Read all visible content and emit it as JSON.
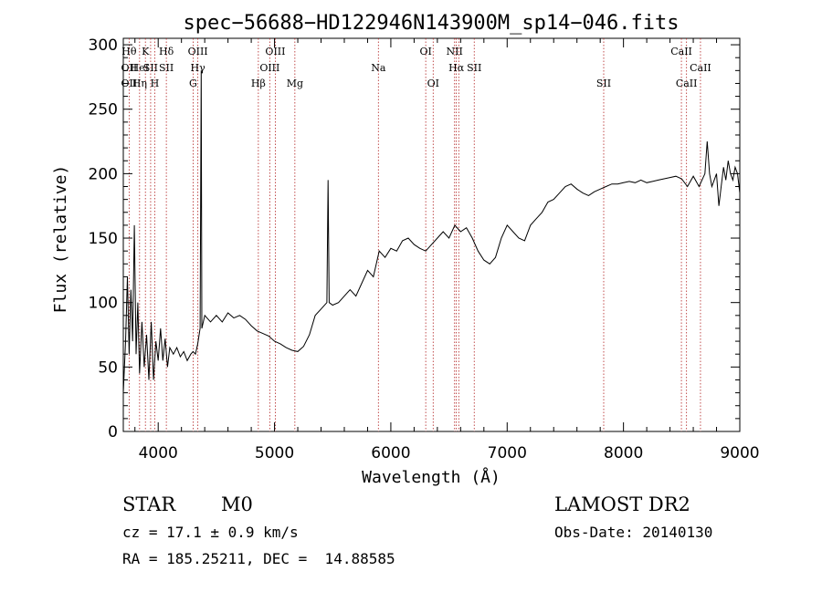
{
  "chart_data": {
    "type": "line",
    "title": "spec−56688−HD122946N143900M_sp14−046.fits",
    "xlabel": "Wavelength (Å)",
    "ylabel": "Flux (relative)",
    "xlim": [
      3700,
      9000
    ],
    "ylim": [
      0,
      305
    ],
    "xticks": [
      4000,
      5000,
      6000,
      7000,
      8000,
      9000
    ],
    "yticks": [
      0,
      50,
      100,
      150,
      200,
      250,
      300
    ],
    "series": [
      {
        "points": [
          [
            3700,
            30
          ],
          [
            3720,
            70
          ],
          [
            3735,
            120
          ],
          [
            3750,
            60
          ],
          [
            3765,
            110
          ],
          [
            3780,
            70
          ],
          [
            3795,
            160
          ],
          [
            3810,
            60
          ],
          [
            3825,
            100
          ],
          [
            3840,
            45
          ],
          [
            3860,
            85
          ],
          [
            3880,
            50
          ],
          [
            3900,
            75
          ],
          [
            3920,
            40
          ],
          [
            3940,
            85
          ],
          [
            3960,
            40
          ],
          [
            3980,
            70
          ],
          [
            4000,
            55
          ],
          [
            4020,
            80
          ],
          [
            4040,
            55
          ],
          [
            4060,
            72
          ],
          [
            4080,
            50
          ],
          [
            4100,
            65
          ],
          [
            4130,
            60
          ],
          [
            4160,
            65
          ],
          [
            4190,
            58
          ],
          [
            4220,
            62
          ],
          [
            4250,
            55
          ],
          [
            4280,
            60
          ],
          [
            4300,
            62
          ],
          [
            4320,
            60
          ],
          [
            4340,
            68
          ],
          [
            4360,
            80
          ],
          [
            4370,
            280
          ],
          [
            4375,
            80
          ],
          [
            4400,
            90
          ],
          [
            4450,
            85
          ],
          [
            4500,
            90
          ],
          [
            4550,
            85
          ],
          [
            4600,
            92
          ],
          [
            4650,
            88
          ],
          [
            4700,
            90
          ],
          [
            4750,
            87
          ],
          [
            4800,
            82
          ],
          [
            4850,
            78
          ],
          [
            4900,
            76
          ],
          [
            4950,
            74
          ],
          [
            5000,
            70
          ],
          [
            5050,
            68
          ],
          [
            5100,
            65
          ],
          [
            5150,
            63
          ],
          [
            5200,
            62
          ],
          [
            5250,
            66
          ],
          [
            5300,
            75
          ],
          [
            5350,
            90
          ],
          [
            5400,
            95
          ],
          [
            5450,
            100
          ],
          [
            5460,
            195
          ],
          [
            5470,
            100
          ],
          [
            5500,
            98
          ],
          [
            5550,
            100
          ],
          [
            5600,
            105
          ],
          [
            5650,
            110
          ],
          [
            5700,
            105
          ],
          [
            5750,
            115
          ],
          [
            5800,
            125
          ],
          [
            5850,
            120
          ],
          [
            5900,
            140
          ],
          [
            5950,
            135
          ],
          [
            6000,
            142
          ],
          [
            6050,
            140
          ],
          [
            6100,
            148
          ],
          [
            6150,
            150
          ],
          [
            6200,
            145
          ],
          [
            6250,
            142
          ],
          [
            6300,
            140
          ],
          [
            6350,
            145
          ],
          [
            6400,
            150
          ],
          [
            6450,
            155
          ],
          [
            6500,
            150
          ],
          [
            6550,
            160
          ],
          [
            6600,
            155
          ],
          [
            6650,
            158
          ],
          [
            6700,
            150
          ],
          [
            6750,
            140
          ],
          [
            6800,
            133
          ],
          [
            6850,
            130
          ],
          [
            6900,
            135
          ],
          [
            6950,
            150
          ],
          [
            7000,
            160
          ],
          [
            7050,
            155
          ],
          [
            7100,
            150
          ],
          [
            7150,
            148
          ],
          [
            7200,
            160
          ],
          [
            7250,
            165
          ],
          [
            7300,
            170
          ],
          [
            7350,
            178
          ],
          [
            7400,
            180
          ],
          [
            7450,
            185
          ],
          [
            7500,
            190
          ],
          [
            7550,
            192
          ],
          [
            7600,
            188
          ],
          [
            7650,
            185
          ],
          [
            7700,
            183
          ],
          [
            7750,
            186
          ],
          [
            7800,
            188
          ],
          [
            7850,
            190
          ],
          [
            7900,
            192
          ],
          [
            7950,
            192
          ],
          [
            8000,
            193
          ],
          [
            8050,
            194
          ],
          [
            8100,
            193
          ],
          [
            8150,
            195
          ],
          [
            8200,
            193
          ],
          [
            8250,
            194
          ],
          [
            8300,
            195
          ],
          [
            8350,
            196
          ],
          [
            8400,
            197
          ],
          [
            8450,
            198
          ],
          [
            8500,
            196
          ],
          [
            8550,
            190
          ],
          [
            8600,
            198
          ],
          [
            8650,
            190
          ],
          [
            8700,
            200
          ],
          [
            8720,
            225
          ],
          [
            8740,
            200
          ],
          [
            8760,
            190
          ],
          [
            8780,
            195
          ],
          [
            8800,
            200
          ],
          [
            8820,
            175
          ],
          [
            8840,
            190
          ],
          [
            8860,
            205
          ],
          [
            8880,
            195
          ],
          [
            8900,
            210
          ],
          [
            8920,
            200
          ],
          [
            8940,
            195
          ],
          [
            8960,
            205
          ],
          [
            8980,
            200
          ],
          [
            9000,
            185
          ]
        ]
      }
    ],
    "lines": [
      {
        "wave": 3750,
        "labels": [
          {
            "row": 1,
            "text": "Hθ"
          },
          {
            "row": 2,
            "text": "OII"
          },
          {
            "row": 3,
            "text": "OII"
          }
        ]
      },
      {
        "wave": 3840,
        "labels": [
          {
            "row": 2,
            "text": "HeI"
          },
          {
            "row": 3,
            "text": "Hη"
          }
        ]
      },
      {
        "wave": 3890,
        "labels": [
          {
            "row": 1,
            "text": "K"
          }
        ]
      },
      {
        "wave": 3935,
        "labels": [
          {
            "row": 2,
            "text": "SII"
          }
        ]
      },
      {
        "wave": 3970,
        "labels": [
          {
            "row": 3,
            "text": "H"
          }
        ]
      },
      {
        "wave": 4070,
        "labels": [
          {
            "row": 1,
            "text": "Hδ"
          },
          {
            "row": 2,
            "text": "SII"
          }
        ]
      },
      {
        "wave": 4300,
        "labels": [
          {
            "row": 3,
            "text": "G"
          }
        ]
      },
      {
        "wave": 4341,
        "labels": [
          {
            "row": 1,
            "text": "OIII"
          },
          {
            "row": 2,
            "text": "Hγ"
          }
        ]
      },
      {
        "wave": 4861,
        "labels": [
          {
            "row": 3,
            "text": "Hβ"
          }
        ]
      },
      {
        "wave": 4959,
        "labels": [
          {
            "row": 2,
            "text": "OIII"
          }
        ]
      },
      {
        "wave": 5007,
        "labels": [
          {
            "row": 1,
            "text": "OIII"
          }
        ]
      },
      {
        "wave": 5175,
        "labels": [
          {
            "row": 3,
            "text": "Mg"
          }
        ]
      },
      {
        "wave": 5893,
        "labels": [
          {
            "row": 2,
            "text": "Na"
          }
        ]
      },
      {
        "wave": 6300,
        "labels": [
          {
            "row": 1,
            "text": "OI"
          }
        ]
      },
      {
        "wave": 6364,
        "labels": [
          {
            "row": 3,
            "text": "OI"
          }
        ]
      },
      {
        "wave": 6548,
        "labels": [
          {
            "row": 1,
            "text": "NII"
          }
        ]
      },
      {
        "wave": 6563,
        "labels": [
          {
            "row": 2,
            "text": "Hα"
          }
        ]
      },
      {
        "wave": 6584,
        "labels": []
      },
      {
        "wave": 6717,
        "labels": [
          {
            "row": 2,
            "text": "SII"
          }
        ]
      },
      {
        "wave": 7830,
        "labels": [
          {
            "row": 3,
            "text": "SII"
          }
        ]
      },
      {
        "wave": 8498,
        "labels": [
          {
            "row": 1,
            "text": "CaII"
          }
        ]
      },
      {
        "wave": 8542,
        "labels": [
          {
            "row": 3,
            "text": "CaII"
          }
        ]
      },
      {
        "wave": 8662,
        "labels": [
          {
            "row": 2,
            "text": "CaII"
          }
        ]
      }
    ]
  },
  "info": {
    "class_label": "STAR",
    "subclass": "M0",
    "survey": "LAMOST DR2",
    "cz": "cz = 17.1 ± 0.9 km/s",
    "obs_date": "Obs-Date: 20140130",
    "coords": "RA = 185.25211, DEC =  14.88585"
  }
}
